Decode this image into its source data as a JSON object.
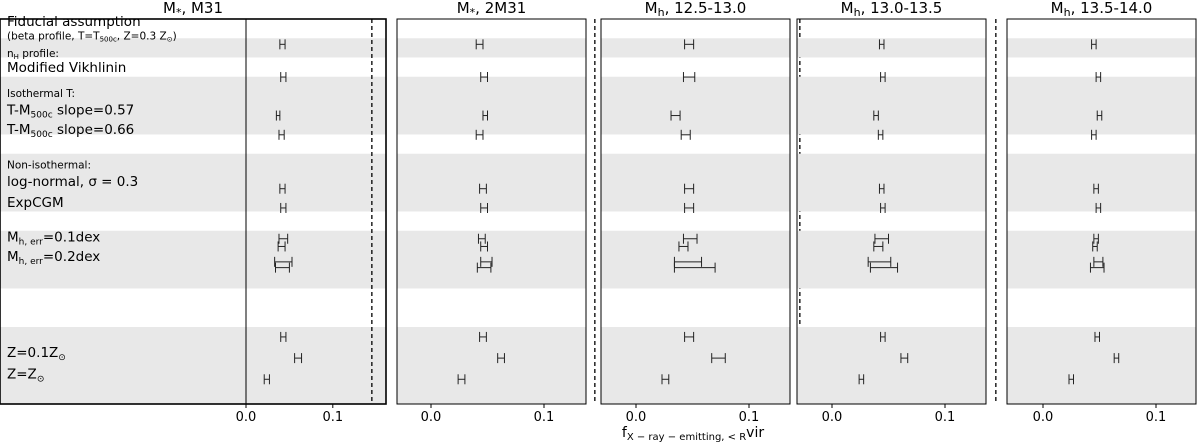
{
  "chart_data": {
    "type": "errorbar",
    "xlabel_parts": [
      "f",
      "X − ray − emitting, < R",
      "vir"
    ],
    "xlim": [
      -0.04,
      0.185
    ],
    "xticks": [
      0.0,
      0.1
    ],
    "xtick_labels": [
      "0.0",
      "0.1"
    ],
    "vline_dashed_at": 0.145,
    "bands": [
      {
        "from": 1,
        "to": 2
      },
      {
        "from": 3,
        "to": 6
      },
      {
        "from": 7,
        "to": 10
      },
      {
        "from": 11,
        "to": 14
      },
      {
        "from": 16,
        "to": 20
      }
    ],
    "row_labels": [
      {
        "row": 0,
        "parts": [
          "Fiducial assumption"
        ],
        "size": "large"
      },
      {
        "row": 0.7,
        "parts": [
          "(beta profile, T=T",
          "500c",
          ", Z=0.3 Z",
          "⊙",
          ")"
        ],
        "size": "small"
      },
      {
        "row": 1.6,
        "parts": [
          "n",
          "H",
          " profile:"
        ],
        "size": "small"
      },
      {
        "row": 2.4,
        "parts": [
          "Modified Vikhlinin"
        ],
        "size": "large"
      },
      {
        "row": 3.7,
        "parts": [
          "Isothermal T:"
        ],
        "size": "small"
      },
      {
        "row": 4.6,
        "parts": [
          "T-M",
          "500c",
          " slope=0.57"
        ],
        "size": "large"
      },
      {
        "row": 5.6,
        "parts": [
          "T-M",
          "500c",
          " slope=0.66"
        ],
        "size": "large"
      },
      {
        "row": 7.4,
        "parts": [
          "Non-isothermal:"
        ],
        "size": "small"
      },
      {
        "row": 8.3,
        "parts": [
          "log-normal, σ = 0.3"
        ],
        "size": "large"
      },
      {
        "row": 9.4,
        "parts": [
          "ExpCGM"
        ],
        "size": "large"
      },
      {
        "row": 11.2,
        "parts": [
          "M",
          "h, err",
          "=0.1dex"
        ],
        "size": "large"
      },
      {
        "row": 12.2,
        "parts": [
          "M",
          "h, err",
          "=0.2dex"
        ],
        "size": "large"
      },
      {
        "row": 17.2,
        "parts": [
          "Z=0.1Z",
          "⊙"
        ],
        "size": "large"
      },
      {
        "row": 18.3,
        "parts": [
          "Z=Z",
          "⊙"
        ],
        "size": "large"
      }
    ],
    "panels": [
      {
        "title_parts": [
          "M",
          "*",
          ", M31"
        ],
        "points": [
          {
            "row": 0.9,
            "x": 0.042,
            "err": 0.003
          },
          {
            "row": 2.6,
            "x": 0.043,
            "err": 0.003
          },
          {
            "row": 4.6,
            "x": 0.037,
            "err": 0.002
          },
          {
            "row": 5.6,
            "x": 0.041,
            "err": 0.003
          },
          {
            "row": 8.4,
            "x": 0.042,
            "err": 0.003
          },
          {
            "row": 9.4,
            "x": 0.043,
            "err": 0.003
          },
          {
            "row": 11.0,
            "x": 0.043,
            "err": 0.005
          },
          {
            "row": 11.4,
            "x": 0.041,
            "err": 0.004
          },
          {
            "row": 12.2,
            "x": 0.043,
            "err": 0.01
          },
          {
            "row": 12.5,
            "x": 0.042,
            "err": 0.008
          },
          {
            "row": 16.1,
            "x": 0.043,
            "err": 0.003
          },
          {
            "row": 17.2,
            "x": 0.06,
            "err": 0.004
          },
          {
            "row": 18.3,
            "x": 0.024,
            "err": 0.003
          }
        ]
      },
      {
        "title_parts": [
          "M",
          "*",
          ", 2M31"
        ],
        "points": [
          {
            "row": 0.9,
            "x": 0.043,
            "err": 0.003
          },
          {
            "row": 2.6,
            "x": 0.047,
            "err": 0.003
          },
          {
            "row": 4.6,
            "x": 0.048,
            "err": 0.002
          },
          {
            "row": 5.6,
            "x": 0.043,
            "err": 0.003
          },
          {
            "row": 8.4,
            "x": 0.046,
            "err": 0.003
          },
          {
            "row": 9.4,
            "x": 0.047,
            "err": 0.003
          },
          {
            "row": 11.0,
            "x": 0.045,
            "err": 0.003
          },
          {
            "row": 11.4,
            "x": 0.047,
            "err": 0.003
          },
          {
            "row": 12.2,
            "x": 0.049,
            "err": 0.005
          },
          {
            "row": 12.5,
            "x": 0.047,
            "err": 0.006
          },
          {
            "row": 16.1,
            "x": 0.046,
            "err": 0.003
          },
          {
            "row": 17.2,
            "x": 0.062,
            "err": 0.003
          },
          {
            "row": 18.3,
            "x": 0.027,
            "err": 0.003
          }
        ]
      },
      {
        "title_parts": [
          "M",
          "h",
          ", 12.5-13.0"
        ],
        "points": [
          {
            "row": 0.9,
            "x": 0.047,
            "err": 0.004
          },
          {
            "row": 2.6,
            "x": 0.047,
            "err": 0.005
          },
          {
            "row": 4.6,
            "x": 0.035,
            "err": 0.004
          },
          {
            "row": 5.6,
            "x": 0.044,
            "err": 0.004
          },
          {
            "row": 8.4,
            "x": 0.047,
            "err": 0.004
          },
          {
            "row": 9.4,
            "x": 0.047,
            "err": 0.004
          },
          {
            "row": 11.0,
            "x": 0.048,
            "err": 0.006
          },
          {
            "row": 11.4,
            "x": 0.042,
            "err": 0.004
          },
          {
            "row": 12.2,
            "x": 0.046,
            "err": 0.012
          },
          {
            "row": 12.5,
            "x": 0.052,
            "err": 0.018
          },
          {
            "row": 16.1,
            "x": 0.047,
            "err": 0.004
          },
          {
            "row": 17.2,
            "x": 0.073,
            "err": 0.006
          },
          {
            "row": 18.3,
            "x": 0.026,
            "err": 0.003
          }
        ]
      },
      {
        "title_parts": [
          "M",
          "h",
          ", 13.0-13.5"
        ],
        "points": [
          {
            "row": 0.9,
            "x": 0.044,
            "err": 0.002
          },
          {
            "row": 2.6,
            "x": 0.045,
            "err": 0.002
          },
          {
            "row": 4.6,
            "x": 0.039,
            "err": 0.002
          },
          {
            "row": 5.6,
            "x": 0.043,
            "err": 0.002
          },
          {
            "row": 8.4,
            "x": 0.044,
            "err": 0.002
          },
          {
            "row": 9.4,
            "x": 0.045,
            "err": 0.002
          },
          {
            "row": 11.0,
            "x": 0.044,
            "err": 0.006
          },
          {
            "row": 11.4,
            "x": 0.041,
            "err": 0.004
          },
          {
            "row": 12.2,
            "x": 0.042,
            "err": 0.01
          },
          {
            "row": 12.5,
            "x": 0.046,
            "err": 0.012
          },
          {
            "row": 16.1,
            "x": 0.045,
            "err": 0.002
          },
          {
            "row": 17.2,
            "x": 0.064,
            "err": 0.003
          },
          {
            "row": 18.3,
            "x": 0.026,
            "err": 0.002
          }
        ]
      },
      {
        "title_parts": [
          "M",
          "h",
          ", 13.5-14.0"
        ],
        "points": [
          {
            "row": 0.9,
            "x": 0.045,
            "err": 0.002
          },
          {
            "row": 2.6,
            "x": 0.049,
            "err": 0.002
          },
          {
            "row": 4.6,
            "x": 0.05,
            "err": 0.002
          },
          {
            "row": 5.6,
            "x": 0.045,
            "err": 0.002
          },
          {
            "row": 8.4,
            "x": 0.047,
            "err": 0.002
          },
          {
            "row": 9.4,
            "x": 0.049,
            "err": 0.002
          },
          {
            "row": 11.0,
            "x": 0.047,
            "err": 0.002
          },
          {
            "row": 11.4,
            "x": 0.046,
            "err": 0.002
          },
          {
            "row": 12.2,
            "x": 0.049,
            "err": 0.004
          },
          {
            "row": 12.5,
            "x": 0.048,
            "err": 0.006
          },
          {
            "row": 16.1,
            "x": 0.048,
            "err": 0.002
          },
          {
            "row": 17.2,
            "x": 0.065,
            "err": 0.002
          },
          {
            "row": 18.3,
            "x": 0.025,
            "err": 0.002
          }
        ]
      }
    ]
  }
}
